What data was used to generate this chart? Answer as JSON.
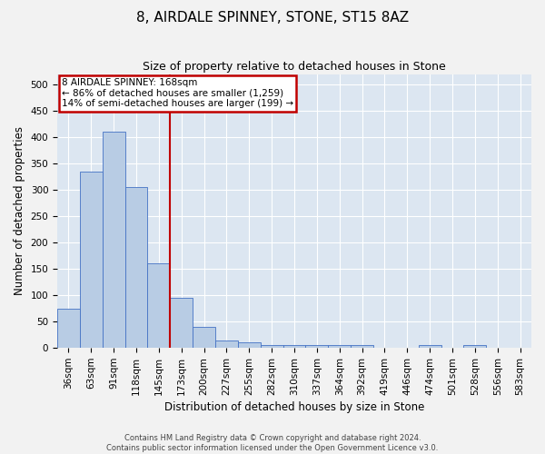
{
  "title": "8, AIRDALE SPINNEY, STONE, ST15 8AZ",
  "subtitle": "Size of property relative to detached houses in Stone",
  "xlabel": "Distribution of detached houses by size in Stone",
  "ylabel": "Number of detached properties",
  "footer_line1": "Contains HM Land Registry data © Crown copyright and database right 2024.",
  "footer_line2": "Contains public sector information licensed under the Open Government Licence v3.0.",
  "bin_labels": [
    "36sqm",
    "63sqm",
    "91sqm",
    "118sqm",
    "145sqm",
    "173sqm",
    "200sqm",
    "227sqm",
    "255sqm",
    "282sqm",
    "310sqm",
    "337sqm",
    "364sqm",
    "392sqm",
    "419sqm",
    "446sqm",
    "474sqm",
    "501sqm",
    "528sqm",
    "556sqm",
    "583sqm"
  ],
  "bar_values": [
    75,
    335,
    410,
    305,
    160,
    95,
    40,
    15,
    10,
    5,
    5,
    5,
    5,
    5,
    0,
    0,
    5,
    0,
    5,
    0,
    0
  ],
  "bar_color": "#b8cce4",
  "bar_edge_color": "#4472c4",
  "vline_bin_index": 5,
  "vline_color": "#c00000",
  "annotation_line1": "8 AIRDALE SPINNEY: 168sqm",
  "annotation_line2": "← 86% of detached houses are smaller (1,259)",
  "annotation_line3": "14% of semi-detached houses are larger (199) →",
  "annotation_box_color": "#c00000",
  "ylim": [
    0,
    520
  ],
  "yticks": [
    0,
    50,
    100,
    150,
    200,
    250,
    300,
    350,
    400,
    450,
    500
  ],
  "fig_bg_color": "#f2f2f2",
  "plot_bg_color": "#dce6f1",
  "grid_color": "#ffffff",
  "title_fontsize": 11,
  "subtitle_fontsize": 9,
  "axis_label_fontsize": 8.5,
  "tick_fontsize": 7.5,
  "annotation_fontsize": 7.5,
  "footer_fontsize": 6
}
